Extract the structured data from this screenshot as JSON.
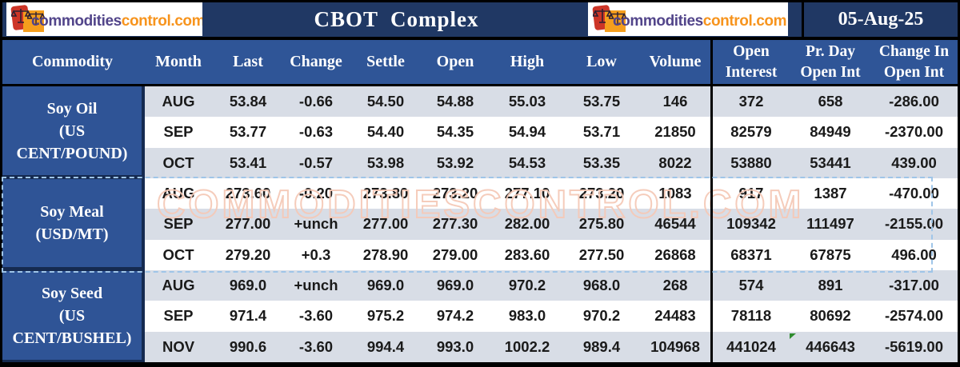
{
  "top_bar": {
    "logo": {
      "part1": "commodities",
      "part2": "control.com"
    },
    "title": "CBOT  Complex",
    "date": "05-Aug-25"
  },
  "watermark": "COMMODITIESCONTROL.COM",
  "colors": {
    "top_bar_navy": "#203864",
    "header_blue": "#2f5597",
    "commodity_cell_blue": "#2f5496",
    "row_alt_gray": "#d8dde6",
    "row_white": "#ffffff",
    "watermark_outline": "#f5cab8",
    "marquee_dash_blue": "#9fc5e8",
    "logo_purple": "#52458a",
    "logo_orange": "#f7941d",
    "data_text": "#1a1a1a"
  },
  "table": {
    "headers": [
      "Commodity",
      "Month",
      "Last",
      "Change",
      "Settle",
      "Open",
      "High",
      "Low",
      "Volume",
      "Open Interest",
      "Pr. Day Open Int",
      "Change In Open Int"
    ],
    "groups": [
      {
        "commodity": "Soy Oil",
        "unit": "(US CENT/POUND)",
        "rows": [
          {
            "month": "AUG",
            "cells": [
              "53.84",
              "-0.66",
              "54.50",
              "54.88",
              "55.03",
              "53.75",
              "146",
              "372",
              "658",
              "-286.00"
            ]
          },
          {
            "month": "SEP",
            "cells": [
              "53.77",
              "-0.63",
              "54.40",
              "54.35",
              "54.94",
              "53.71",
              "21850",
              "82579",
              "84949",
              "-2370.00"
            ]
          },
          {
            "month": "OCT",
            "cells": [
              "53.41",
              "-0.57",
              "53.98",
              "53.92",
              "54.53",
              "53.35",
              "8022",
              "53880",
              "53441",
              "439.00"
            ]
          }
        ]
      },
      {
        "commodity": "Soy Meal",
        "unit": "(USD/MT)",
        "rows": [
          {
            "month": "AUG",
            "cells": [
              "273.60",
              "-0.20",
              "273.80",
              "273.20",
              "277.10",
              "273.20",
              "1083",
              "917",
              "1387",
              "-470.00"
            ]
          },
          {
            "month": "SEP",
            "cells": [
              "277.00",
              "+unch",
              "277.00",
              "277.30",
              "282.00",
              "275.80",
              "46544",
              "109342",
              "111497",
              "-2155.00"
            ]
          },
          {
            "month": "OCT",
            "cells": [
              "279.20",
              "+0.3",
              "278.90",
              "279.00",
              "283.60",
              "277.50",
              "26868",
              "68371",
              "67875",
              "496.00"
            ]
          }
        ]
      },
      {
        "commodity": "Soy Seed",
        "unit": "(US CENT/BUSHEL)",
        "rows": [
          {
            "month": "AUG",
            "cells": [
              "969.0",
              "+unch",
              "969.0",
              "969.0",
              "970.2",
              "968.0",
              "268",
              "574",
              "891",
              "-317.00"
            ]
          },
          {
            "month": "SEP",
            "cells": [
              "971.4",
              "-3.60",
              "975.2",
              "974.2",
              "983.0",
              "970.2",
              "24483",
              "78118",
              "80692",
              "-2574.00"
            ]
          },
          {
            "month": "NOV",
            "cells": [
              "990.6",
              "-3.60",
              "994.4",
              "993.0",
              "1002.2",
              "989.4",
              "104968",
              "441024",
              "446643",
              "-5619.00"
            ]
          }
        ]
      }
    ]
  }
}
